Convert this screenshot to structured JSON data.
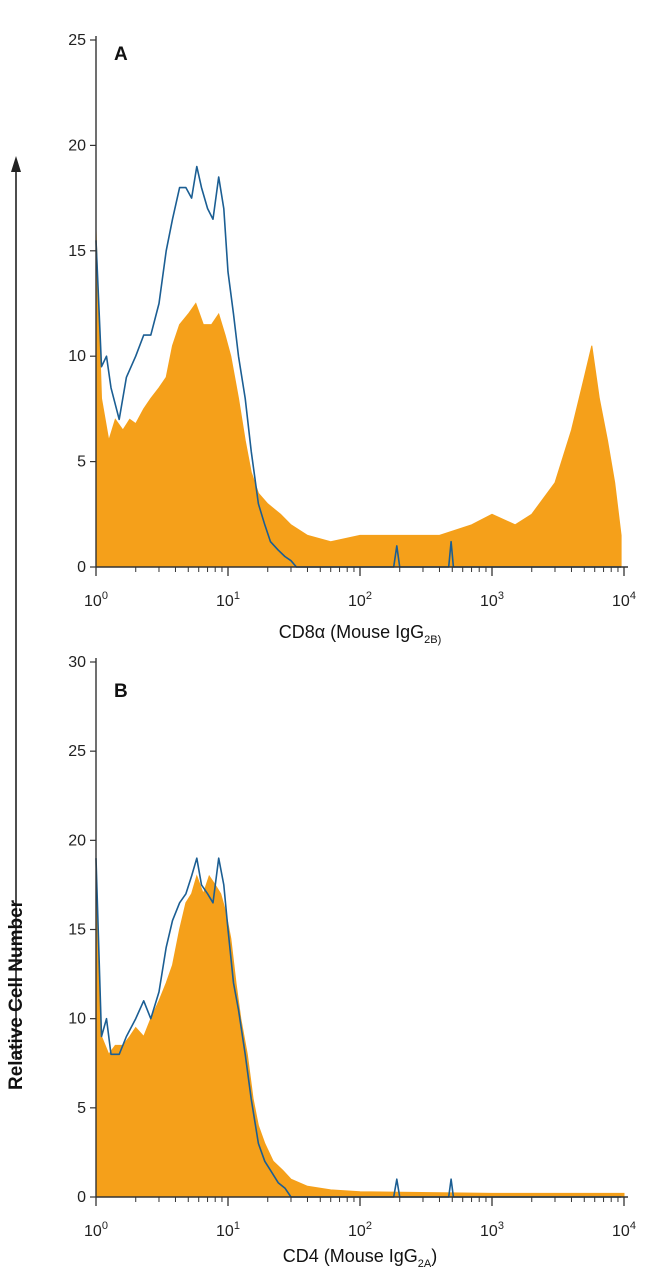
{
  "figure": {
    "ylabel": "Relative Cell Number",
    "colors": {
      "filled": "#f5a01a",
      "outline": "#1b5e93",
      "axis": "#333333"
    }
  },
  "chart_data": [
    {
      "type": "area",
      "panel": "A",
      "xscale": "log",
      "xlim": [
        1,
        10000
      ],
      "ylim": [
        0,
        25
      ],
      "yticks": [
        0,
        5,
        10,
        15,
        20,
        25
      ],
      "xtick_labels": [
        {
          "base": "10",
          "exp": "0"
        },
        {
          "base": "10",
          "exp": "1"
        },
        {
          "base": "10",
          "exp": "2"
        },
        {
          "base": "10",
          "exp": "3"
        },
        {
          "base": "10",
          "exp": "4"
        }
      ],
      "xlabel": {
        "text": "CD8α (Mouse IgG",
        "sub": "2B)",
        "after": ""
      },
      "series": [
        {
          "style": "filled",
          "points": [
            [
              1,
              16
            ],
            [
              1.1,
              8
            ],
            [
              1.25,
              6
            ],
            [
              1.4,
              7
            ],
            [
              1.6,
              6.5
            ],
            [
              1.8,
              7
            ],
            [
              2,
              6.8
            ],
            [
              2.3,
              7.5
            ],
            [
              2.6,
              8
            ],
            [
              3,
              8.5
            ],
            [
              3.4,
              9
            ],
            [
              3.8,
              10.5
            ],
            [
              4.3,
              11.5
            ],
            [
              5,
              12
            ],
            [
              5.7,
              12.5
            ],
            [
              6.5,
              11.5
            ],
            [
              7.5,
              11.5
            ],
            [
              8.5,
              12
            ],
            [
              9.5,
              11
            ],
            [
              10.5,
              10
            ],
            [
              12,
              8
            ],
            [
              13.5,
              6
            ],
            [
              15,
              4.5
            ],
            [
              17,
              3.5
            ],
            [
              20,
              3
            ],
            [
              25,
              2.5
            ],
            [
              30,
              2
            ],
            [
              40,
              1.5
            ],
            [
              60,
              1.2
            ],
            [
              100,
              1.5
            ],
            [
              200,
              1.5
            ],
            [
              400,
              1.5
            ],
            [
              700,
              2
            ],
            [
              1000,
              2.5
            ],
            [
              1500,
              2
            ],
            [
              2000,
              2.5
            ],
            [
              3000,
              4
            ],
            [
              4000,
              6.5
            ],
            [
              5000,
              9
            ],
            [
              5700,
              10.5
            ],
            [
              6500,
              8
            ],
            [
              7500,
              6
            ],
            [
              8500,
              4
            ],
            [
              9500,
              1.5
            ]
          ]
        },
        {
          "style": "outline",
          "points": [
            [
              1,
              15.5
            ],
            [
              1.1,
              9.5
            ],
            [
              1.2,
              10
            ],
            [
              1.3,
              8.5
            ],
            [
              1.5,
              7
            ],
            [
              1.7,
              9
            ],
            [
              2,
              10
            ],
            [
              2.3,
              11
            ],
            [
              2.6,
              11
            ],
            [
              3,
              12.5
            ],
            [
              3.4,
              15
            ],
            [
              3.8,
              16.5
            ],
            [
              4.3,
              18
            ],
            [
              4.8,
              18
            ],
            [
              5.3,
              17.5
            ],
            [
              5.8,
              19
            ],
            [
              6.3,
              18
            ],
            [
              7,
              17
            ],
            [
              7.7,
              16.5
            ],
            [
              8.5,
              18.5
            ],
            [
              9.3,
              17
            ],
            [
              10,
              14
            ],
            [
              11,
              12
            ],
            [
              12,
              10
            ],
            [
              13.5,
              8
            ],
            [
              15,
              5.5
            ],
            [
              17,
              3
            ],
            [
              19,
              2
            ],
            [
              21,
              1.2
            ],
            [
              24,
              0.8
            ],
            [
              27,
              0.5
            ],
            [
              30,
              0.3
            ],
            [
              33,
              0
            ],
            [
              180,
              0
            ],
            [
              190,
              1
            ],
            [
              200,
              0
            ],
            [
              470,
              0
            ],
            [
              490,
              1.2
            ],
            [
              510,
              0
            ],
            [
              9500,
              0
            ]
          ]
        }
      ]
    },
    {
      "type": "area",
      "panel": "B",
      "xscale": "log",
      "xlim": [
        1,
        10000
      ],
      "ylim": [
        0,
        30
      ],
      "yticks": [
        0,
        5,
        10,
        15,
        20,
        25,
        30
      ],
      "xtick_labels": [
        {
          "base": "10",
          "exp": "0"
        },
        {
          "base": "10",
          "exp": "1"
        },
        {
          "base": "10",
          "exp": "2"
        },
        {
          "base": "10",
          "exp": "3"
        },
        {
          "base": "10",
          "exp": "4"
        }
      ],
      "xlabel": {
        "text": "CD4 (Mouse IgG",
        "sub": "2A",
        "after": ")"
      },
      "series": [
        {
          "style": "filled",
          "points": [
            [
              1,
              18.5
            ],
            [
              1.1,
              9
            ],
            [
              1.25,
              8
            ],
            [
              1.4,
              8.5
            ],
            [
              1.6,
              8.5
            ],
            [
              1.8,
              9
            ],
            [
              2,
              9.5
            ],
            [
              2.3,
              9
            ],
            [
              2.6,
              10
            ],
            [
              3,
              11
            ],
            [
              3.4,
              12
            ],
            [
              3.8,
              13
            ],
            [
              4.3,
              15
            ],
            [
              4.8,
              16.5
            ],
            [
              5.3,
              17
            ],
            [
              5.8,
              18
            ],
            [
              6.5,
              17
            ],
            [
              7.2,
              18
            ],
            [
              8,
              17.5
            ],
            [
              8.8,
              17
            ],
            [
              9.6,
              16
            ],
            [
              10.5,
              14.5
            ],
            [
              11.5,
              12
            ],
            [
              12.5,
              10
            ],
            [
              14,
              8
            ],
            [
              15.5,
              5.5
            ],
            [
              17,
              4
            ],
            [
              19,
              3
            ],
            [
              22,
              2
            ],
            [
              26,
              1.5
            ],
            [
              30,
              1
            ],
            [
              40,
              0.6
            ],
            [
              60,
              0.4
            ],
            [
              100,
              0.3
            ],
            [
              1000,
              0.2
            ],
            [
              10000,
              0.2
            ]
          ]
        },
        {
          "style": "outline",
          "points": [
            [
              1,
              19
            ],
            [
              1.1,
              9
            ],
            [
              1.2,
              10
            ],
            [
              1.3,
              8
            ],
            [
              1.5,
              8
            ],
            [
              1.7,
              9
            ],
            [
              2,
              10
            ],
            [
              2.3,
              11
            ],
            [
              2.6,
              10
            ],
            [
              3,
              11.5
            ],
            [
              3.4,
              14
            ],
            [
              3.8,
              15.5
            ],
            [
              4.3,
              16.5
            ],
            [
              4.8,
              17
            ],
            [
              5.3,
              18
            ],
            [
              5.8,
              19
            ],
            [
              6.3,
              17.5
            ],
            [
              7,
              17
            ],
            [
              7.7,
              16.5
            ],
            [
              8.5,
              19
            ],
            [
              9.3,
              17.5
            ],
            [
              10,
              15
            ],
            [
              11,
              12
            ],
            [
              12,
              10.5
            ],
            [
              13.5,
              8
            ],
            [
              15,
              5.5
            ],
            [
              17,
              3
            ],
            [
              19,
              2
            ],
            [
              21,
              1.5
            ],
            [
              24,
              0.8
            ],
            [
              27,
              0.5
            ],
            [
              30,
              0
            ],
            [
              180,
              0
            ],
            [
              190,
              1
            ],
            [
              200,
              0
            ],
            [
              470,
              0
            ],
            [
              490,
              1
            ],
            [
              510,
              0
            ],
            [
              9500,
              0
            ]
          ]
        }
      ]
    }
  ]
}
